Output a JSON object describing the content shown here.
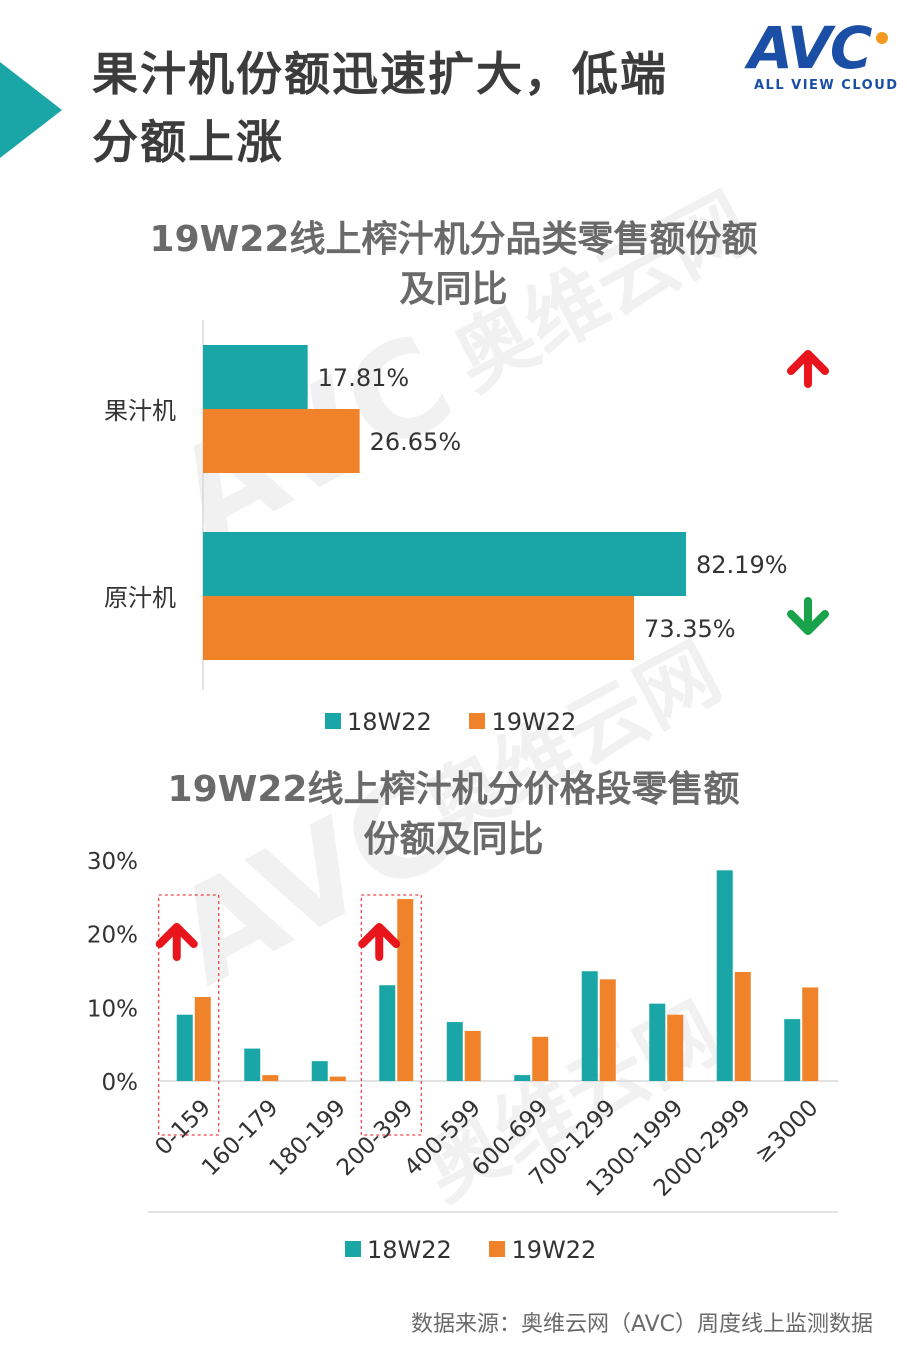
{
  "header": {
    "title_line1": "果汁机份额迅速扩大，低端",
    "title_line2": "分额上涨",
    "logo_text": "AVC",
    "logo_subtitle": "ALL VIEW CLOUD"
  },
  "colors": {
    "series_18w22": "#1aa6a6",
    "series_19w22": "#f0822a",
    "accent_teal": "#1aa6a6",
    "arrow_up": "#e8161c",
    "arrow_down": "#1aa34a"
  },
  "chart_data": [
    {
      "type": "bar",
      "orientation": "horizontal",
      "title_line1": "19W22线上榨汁机分品类零售额份额",
      "title_line2": "及同比",
      "categories": [
        "果汁机",
        "原汁机"
      ],
      "series": [
        {
          "name": "18W22",
          "values": [
            17.81,
            82.19
          ],
          "labels": [
            "17.81%",
            "82.19%"
          ]
        },
        {
          "name": "19W22",
          "values": [
            26.65,
            73.35
          ],
          "labels": [
            "26.65%",
            "73.35%"
          ]
        }
      ],
      "xlim": [
        0,
        100
      ],
      "trend": [
        "up",
        "down"
      ],
      "legend": "bottom"
    },
    {
      "type": "bar",
      "title_line1": "19W22线上榨汁机分价格段零售额",
      "title_line2": "份额及同比",
      "categories": [
        "0-159",
        "160-179",
        "180-199",
        "200-399",
        "400-599",
        "600-699",
        "700-1299",
        "1300-1999",
        "2000-2999",
        "≥3000"
      ],
      "series": [
        {
          "name": "18W22",
          "values": [
            9.0,
            4.4,
            2.7,
            13.0,
            8.0,
            0.8,
            14.9,
            10.5,
            28.6,
            8.4
          ]
        },
        {
          "name": "19W22",
          "values": [
            11.4,
            0.8,
            0.6,
            24.7,
            6.8,
            6.0,
            13.8,
            9.0,
            14.8,
            12.7
          ]
        }
      ],
      "ylim": [
        0,
        30
      ],
      "yticks": [
        "0%",
        "10%",
        "20%",
        "30%"
      ],
      "highlighted": [
        "0-159",
        "200-399"
      ],
      "trend": [
        "up",
        "",
        "",
        "up",
        "",
        "",
        "",
        "",
        "",
        ""
      ],
      "legend": "bottom"
    }
  ],
  "watermarks": [
    "AVC",
    "奥维云网"
  ],
  "source": "数据来源：奥维云网（AVC）周度线上监测数据"
}
